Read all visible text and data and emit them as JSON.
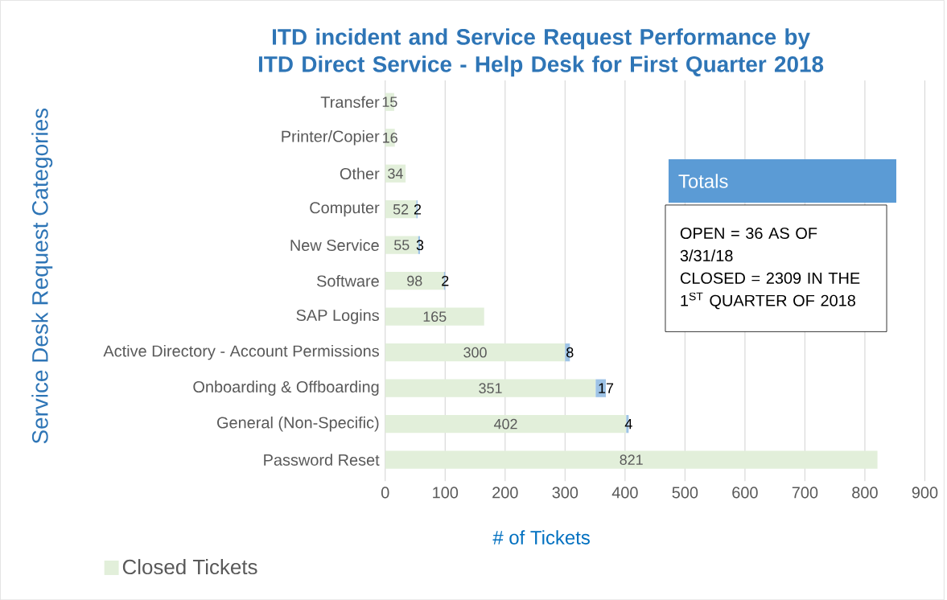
{
  "chart_data": {
    "type": "bar",
    "orientation": "horizontal",
    "stacked": true,
    "title": "ITD incident and Service Request Performance by ITD Direct Service - Help Desk for First Quarter 2018",
    "xlabel": "# of Tickets",
    "ylabel": "Service Desk Request Categories",
    "categories": [
      "Transfer",
      "Printer/Copier",
      "Other",
      "Computer",
      "New Service",
      "Software",
      "SAP Logins",
      "Active Directory - Account Permissions",
      "Onboarding & Offboarding",
      "General (Non-Specific)",
      "Password Reset"
    ],
    "series": [
      {
        "name": "Closed Tickets",
        "color": "#e2efda",
        "values": [
          15,
          16,
          34,
          52,
          55,
          98,
          165,
          300,
          351,
          402,
          821
        ]
      },
      {
        "color": "#9dc3e6",
        "values": [
          null,
          null,
          null,
          2,
          3,
          2,
          null,
          8,
          17,
          4,
          null
        ]
      }
    ],
    "xlim": [
      0,
      900
    ],
    "xticks": [
      0,
      100,
      200,
      300,
      400,
      500,
      600,
      700,
      800,
      900
    ],
    "grid": "x",
    "legend": "bottom left",
    "data_labels": true,
    "annotations": [
      "Totals",
      "OPEN = 36 AS OF 3/31/18",
      "CLOSED = 2309 IN THE 1$^{ST}$ QUARTER OF 2018"
    ]
  }
}
